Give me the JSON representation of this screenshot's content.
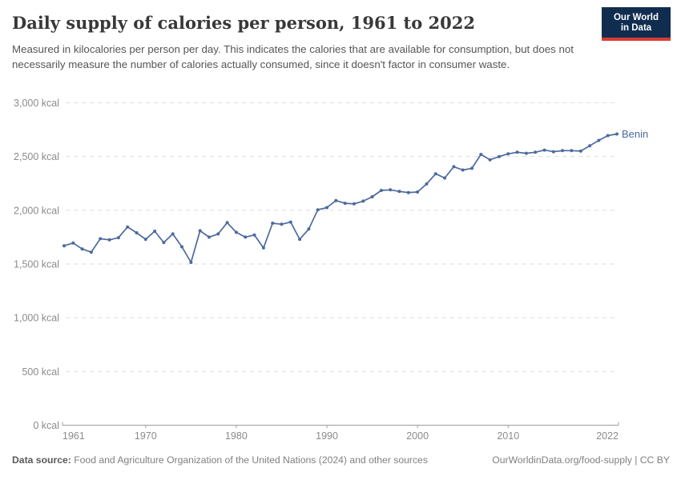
{
  "header": {
    "title": "Daily supply of calories per person, 1961 to 2022",
    "subtitle": "Measured in kilocalories per person per day. This indicates the calories that are available for consumption, but does not necessarily measure the number of calories actually consumed, since it doesn't factor in consumer waste.",
    "logo": {
      "line1": "Our World",
      "line2": "in Data",
      "bg_color": "#102d50",
      "accent_color": "#d73c34"
    }
  },
  "chart_data": {
    "type": "line",
    "title": "Daily supply of calories per person, 1961 to 2022",
    "entity": "Benin",
    "unit": "kcal",
    "line_color": "#4c6a9c",
    "grid": "horizontal-dashed",
    "legend_position": "end-of-line-label",
    "xlim": [
      1961,
      2022
    ],
    "ylim": [
      0,
      3000
    ],
    "x_ticks": [
      1961,
      1970,
      1980,
      1990,
      2000,
      2010,
      2022
    ],
    "y_ticks": [
      {
        "value": 0,
        "label": "0 kcal"
      },
      {
        "value": 500,
        "label": "500 kcal"
      },
      {
        "value": 1000,
        "label": "1,000 kcal"
      },
      {
        "value": 1500,
        "label": "1,500 kcal"
      },
      {
        "value": 2000,
        "label": "2,000 kcal"
      },
      {
        "value": 2500,
        "label": "2,500 kcal"
      },
      {
        "value": 3000,
        "label": "3,000 kcal"
      }
    ],
    "x": [
      1961,
      1962,
      1963,
      1964,
      1965,
      1966,
      1967,
      1968,
      1969,
      1970,
      1971,
      1972,
      1973,
      1974,
      1975,
      1976,
      1977,
      1978,
      1979,
      1980,
      1981,
      1982,
      1983,
      1984,
      1985,
      1986,
      1987,
      1988,
      1989,
      1990,
      1991,
      1992,
      1993,
      1994,
      1995,
      1996,
      1997,
      1998,
      1999,
      2000,
      2001,
      2002,
      2003,
      2004,
      2005,
      2006,
      2007,
      2008,
      2009,
      2010,
      2011,
      2012,
      2013,
      2014,
      2015,
      2016,
      2017,
      2018,
      2019,
      2020,
      2021,
      2022
    ],
    "series": [
      {
        "name": "Benin",
        "values": [
          1670,
          1695,
          1640,
          1610,
          1735,
          1725,
          1745,
          1845,
          1790,
          1730,
          1805,
          1700,
          1780,
          1660,
          1515,
          1810,
          1750,
          1780,
          1885,
          1795,
          1750,
          1770,
          1650,
          1880,
          1870,
          1890,
          1730,
          1825,
          2005,
          2025,
          2090,
          2065,
          2060,
          2085,
          2125,
          2185,
          2190,
          2175,
          2165,
          2170,
          2245,
          2340,
          2300,
          2405,
          2375,
          2390,
          2520,
          2470,
          2500,
          2525,
          2540,
          2530,
          2540,
          2560,
          2545,
          2555,
          2555,
          2550,
          2600,
          2650,
          2695,
          2710
        ]
      }
    ]
  },
  "footer": {
    "source_label": "Data source:",
    "source_text": " Food and Agriculture Organization of the United Nations (2024) and other sources",
    "credit": "OurWorldinData.org/food-supply | CC BY"
  }
}
